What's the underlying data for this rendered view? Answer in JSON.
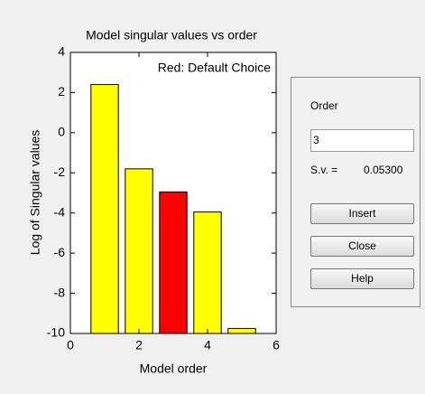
{
  "chart_data": {
    "type": "bar",
    "title": "Model singular values vs order",
    "xlabel": "Model order",
    "ylabel": "Log of Singular values",
    "annotation": "Red: Default Choice",
    "x": [
      1,
      2,
      3,
      4,
      5
    ],
    "values": [
      2.4,
      -1.8,
      -2.95,
      -3.95,
      -9.75
    ],
    "colors": [
      "#ffff00",
      "#ffff00",
      "#ff0000",
      "#ffff00",
      "#ffff00"
    ],
    "xlim": [
      0,
      6
    ],
    "xticks": [
      0,
      2,
      4,
      6
    ],
    "ylim": [
      -10,
      4
    ],
    "yticks": [
      4,
      2,
      0,
      -2,
      -4,
      -6,
      -8,
      -10
    ]
  },
  "panel": {
    "order_label": "Order",
    "order_value": "3",
    "sv_label": "S.v. =",
    "sv_value": "0.05300",
    "buttons": [
      "Insert",
      "Close",
      "Help"
    ]
  }
}
